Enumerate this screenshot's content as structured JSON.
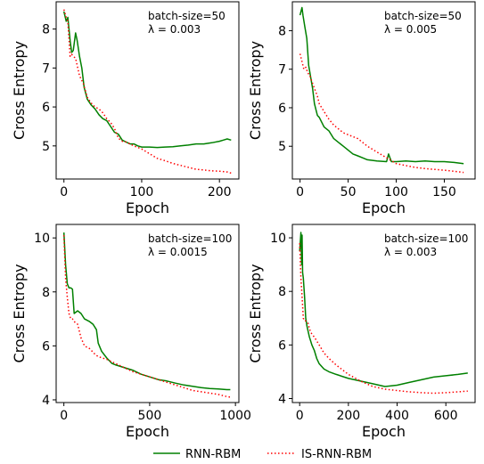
{
  "legend": {
    "rnn_label": "RNN-RBM",
    "is_label": "IS-RNN-RBM",
    "rnn_color": "#008000",
    "is_color": "#ff0000"
  },
  "chart_data": [
    {
      "type": "line",
      "xlabel": "Epoch",
      "ylabel": "Cross Entropy",
      "xlim": [
        -10,
        225
      ],
      "ylim": [
        4.15,
        8.7
      ],
      "xticks": [
        0,
        100,
        200
      ],
      "yticks": [
        5,
        6,
        7,
        8
      ],
      "annotation": [
        "batch-size=50",
        "λ = 0.003"
      ],
      "series": [
        {
          "name": "RNN-RBM",
          "style": "solid",
          "color": "#008000",
          "x": [
            0,
            3,
            5,
            8,
            10,
            12,
            15,
            17,
            20,
            23,
            26,
            30,
            35,
            40,
            45,
            50,
            55,
            60,
            65,
            70,
            75,
            80,
            85,
            90,
            95,
            100,
            110,
            120,
            130,
            140,
            150,
            160,
            170,
            180,
            190,
            200,
            205,
            210,
            215
          ],
          "y": [
            8.45,
            8.2,
            8.3,
            7.7,
            7.4,
            7.45,
            7.9,
            7.7,
            7.3,
            7.0,
            6.5,
            6.2,
            6.05,
            5.95,
            5.8,
            5.7,
            5.65,
            5.5,
            5.35,
            5.3,
            5.15,
            5.1,
            5.05,
            5.05,
            5.0,
            4.97,
            4.97,
            4.96,
            4.97,
            4.98,
            5.0,
            5.02,
            5.05,
            5.05,
            5.08,
            5.12,
            5.15,
            5.18,
            5.15
          ]
        },
        {
          "name": "IS-RNN-RBM",
          "style": "dotted",
          "color": "#ff0000",
          "x": [
            0,
            3,
            5,
            8,
            10,
            12,
            15,
            20,
            25,
            30,
            35,
            40,
            45,
            50,
            55,
            60,
            65,
            70,
            75,
            80,
            90,
            100,
            110,
            120,
            130,
            140,
            150,
            160,
            170,
            180,
            190,
            200,
            210,
            215
          ],
          "y": [
            8.5,
            8.3,
            8.2,
            7.3,
            7.35,
            7.3,
            7.25,
            6.8,
            6.6,
            6.25,
            6.1,
            6.0,
            5.95,
            5.85,
            5.7,
            5.6,
            5.45,
            5.2,
            5.12,
            5.1,
            5.0,
            4.92,
            4.8,
            4.68,
            4.62,
            4.55,
            4.5,
            4.45,
            4.4,
            4.38,
            4.36,
            4.35,
            4.33,
            4.3
          ]
        }
      ]
    },
    {
      "type": "line",
      "xlabel": "Epoch",
      "ylabel": "Cross Entropy",
      "xlim": [
        -8,
        182
      ],
      "ylim": [
        4.15,
        8.75
      ],
      "xticks": [
        0,
        50,
        100,
        150
      ],
      "yticks": [
        5,
        6,
        7,
        8
      ],
      "annotation": [
        "batch-size=50",
        "λ = 0.005"
      ],
      "series": [
        {
          "name": "RNN-RBM",
          "style": "solid",
          "color": "#008000",
          "x": [
            0,
            2,
            3,
            5,
            7,
            9,
            11,
            13,
            15,
            18,
            20,
            25,
            30,
            35,
            40,
            45,
            50,
            55,
            60,
            65,
            70,
            80,
            90,
            92,
            95,
            100,
            110,
            120,
            130,
            140,
            150,
            160,
            170
          ],
          "y": [
            8.4,
            8.6,
            8.4,
            8.1,
            7.8,
            7.1,
            6.8,
            6.5,
            6.1,
            5.8,
            5.75,
            5.5,
            5.4,
            5.2,
            5.1,
            5.0,
            4.9,
            4.8,
            4.75,
            4.7,
            4.65,
            4.62,
            4.6,
            4.8,
            4.6,
            4.6,
            4.62,
            4.6,
            4.62,
            4.6,
            4.6,
            4.58,
            4.55
          ]
        },
        {
          "name": "IS-RNN-RBM",
          "style": "dotted",
          "color": "#ff0000",
          "x": [
            0,
            2,
            4,
            6,
            8,
            10,
            12,
            15,
            18,
            20,
            25,
            30,
            35,
            40,
            45,
            50,
            60,
            70,
            80,
            90,
            100,
            110,
            120,
            130,
            140,
            150,
            160,
            170
          ],
          "y": [
            7.4,
            7.2,
            7.0,
            7.05,
            6.9,
            6.85,
            6.7,
            6.5,
            6.3,
            6.1,
            5.9,
            5.7,
            5.55,
            5.45,
            5.35,
            5.3,
            5.2,
            5.0,
            4.85,
            4.7,
            4.55,
            4.5,
            4.45,
            4.42,
            4.4,
            4.38,
            4.35,
            4.32
          ]
        }
      ]
    },
    {
      "type": "line",
      "xlabel": "Epoch",
      "ylabel": "Cross Entropy",
      "xlim": [
        -45,
        1020
      ],
      "ylim": [
        3.9,
        10.5
      ],
      "xticks": [
        0,
        500,
        1000
      ],
      "yticks": [
        4,
        6,
        8,
        10
      ],
      "annotation": [
        "batch-size=100",
        "λ = 0.0015"
      ],
      "series": [
        {
          "name": "RNN-RBM",
          "style": "solid",
          "color": "#008000",
          "x": [
            0,
            10,
            20,
            30,
            40,
            50,
            60,
            80,
            100,
            120,
            150,
            170,
            190,
            200,
            220,
            250,
            280,
            300,
            350,
            400,
            450,
            500,
            550,
            600,
            650,
            700,
            750,
            800,
            850,
            900,
            950,
            970
          ],
          "y": [
            10.2,
            9.0,
            8.3,
            8.15,
            8.15,
            8.1,
            7.2,
            7.3,
            7.2,
            7.0,
            6.9,
            6.8,
            6.6,
            6.1,
            5.8,
            5.55,
            5.35,
            5.3,
            5.2,
            5.1,
            4.95,
            4.85,
            4.75,
            4.7,
            4.62,
            4.55,
            4.5,
            4.45,
            4.42,
            4.4,
            4.38,
            4.38
          ]
        },
        {
          "name": "IS-RNN-RBM",
          "style": "dotted",
          "color": "#ff0000",
          "x": [
            0,
            10,
            20,
            30,
            40,
            50,
            60,
            80,
            100,
            120,
            150,
            180,
            200,
            250,
            300,
            350,
            400,
            450,
            500,
            550,
            600,
            650,
            700,
            750,
            800,
            850,
            900,
            950,
            970
          ],
          "y": [
            10.1,
            8.5,
            7.8,
            7.2,
            7.0,
            7.0,
            6.9,
            6.8,
            6.3,
            6.0,
            5.9,
            5.7,
            5.6,
            5.5,
            5.35,
            5.2,
            5.05,
            4.95,
            4.85,
            4.75,
            4.65,
            4.55,
            4.45,
            4.35,
            4.3,
            4.25,
            4.2,
            4.12,
            4.1
          ]
        }
      ]
    },
    {
      "type": "line",
      "xlabel": "Epoch",
      "ylabel": "Cross Entropy",
      "xlim": [
        -30,
        720
      ],
      "ylim": [
        3.85,
        10.5
      ],
      "xticks": [
        0,
        200,
        400,
        600
      ],
      "yticks": [
        4,
        6,
        8,
        10
      ],
      "annotation": [
        "batch-size=100",
        "λ = 0.003"
      ],
      "series": [
        {
          "name": "RNN-RBM",
          "style": "solid",
          "color": "#008000",
          "x": [
            0,
            5,
            8,
            10,
            12,
            15,
            20,
            25,
            30,
            40,
            50,
            60,
            70,
            80,
            100,
            120,
            150,
            200,
            250,
            300,
            350,
            400,
            450,
            500,
            550,
            600,
            650,
            690
          ],
          "y": [
            9.5,
            10.2,
            9.0,
            10.1,
            8.7,
            8.5,
            7.8,
            7.0,
            6.7,
            6.3,
            6.0,
            5.8,
            5.5,
            5.3,
            5.1,
            5.0,
            4.9,
            4.75,
            4.65,
            4.55,
            4.45,
            4.5,
            4.6,
            4.7,
            4.8,
            4.85,
            4.9,
            4.95
          ]
        },
        {
          "name": "IS-RNN-RBM",
          "style": "dotted",
          "color": "#ff0000",
          "x": [
            0,
            5,
            10,
            15,
            20,
            25,
            30,
            35,
            40,
            50,
            60,
            70,
            80,
            100,
            120,
            150,
            200,
            250,
            300,
            350,
            400,
            450,
            500,
            550,
            600,
            650,
            690
          ],
          "y": [
            9.8,
            8.5,
            7.8,
            7.0,
            6.9,
            6.9,
            6.85,
            6.8,
            6.6,
            6.4,
            6.3,
            6.15,
            6.0,
            5.7,
            5.5,
            5.25,
            4.9,
            4.65,
            4.45,
            4.35,
            4.3,
            4.25,
            4.22,
            4.2,
            4.22,
            4.25,
            4.28
          ]
        }
      ]
    }
  ]
}
